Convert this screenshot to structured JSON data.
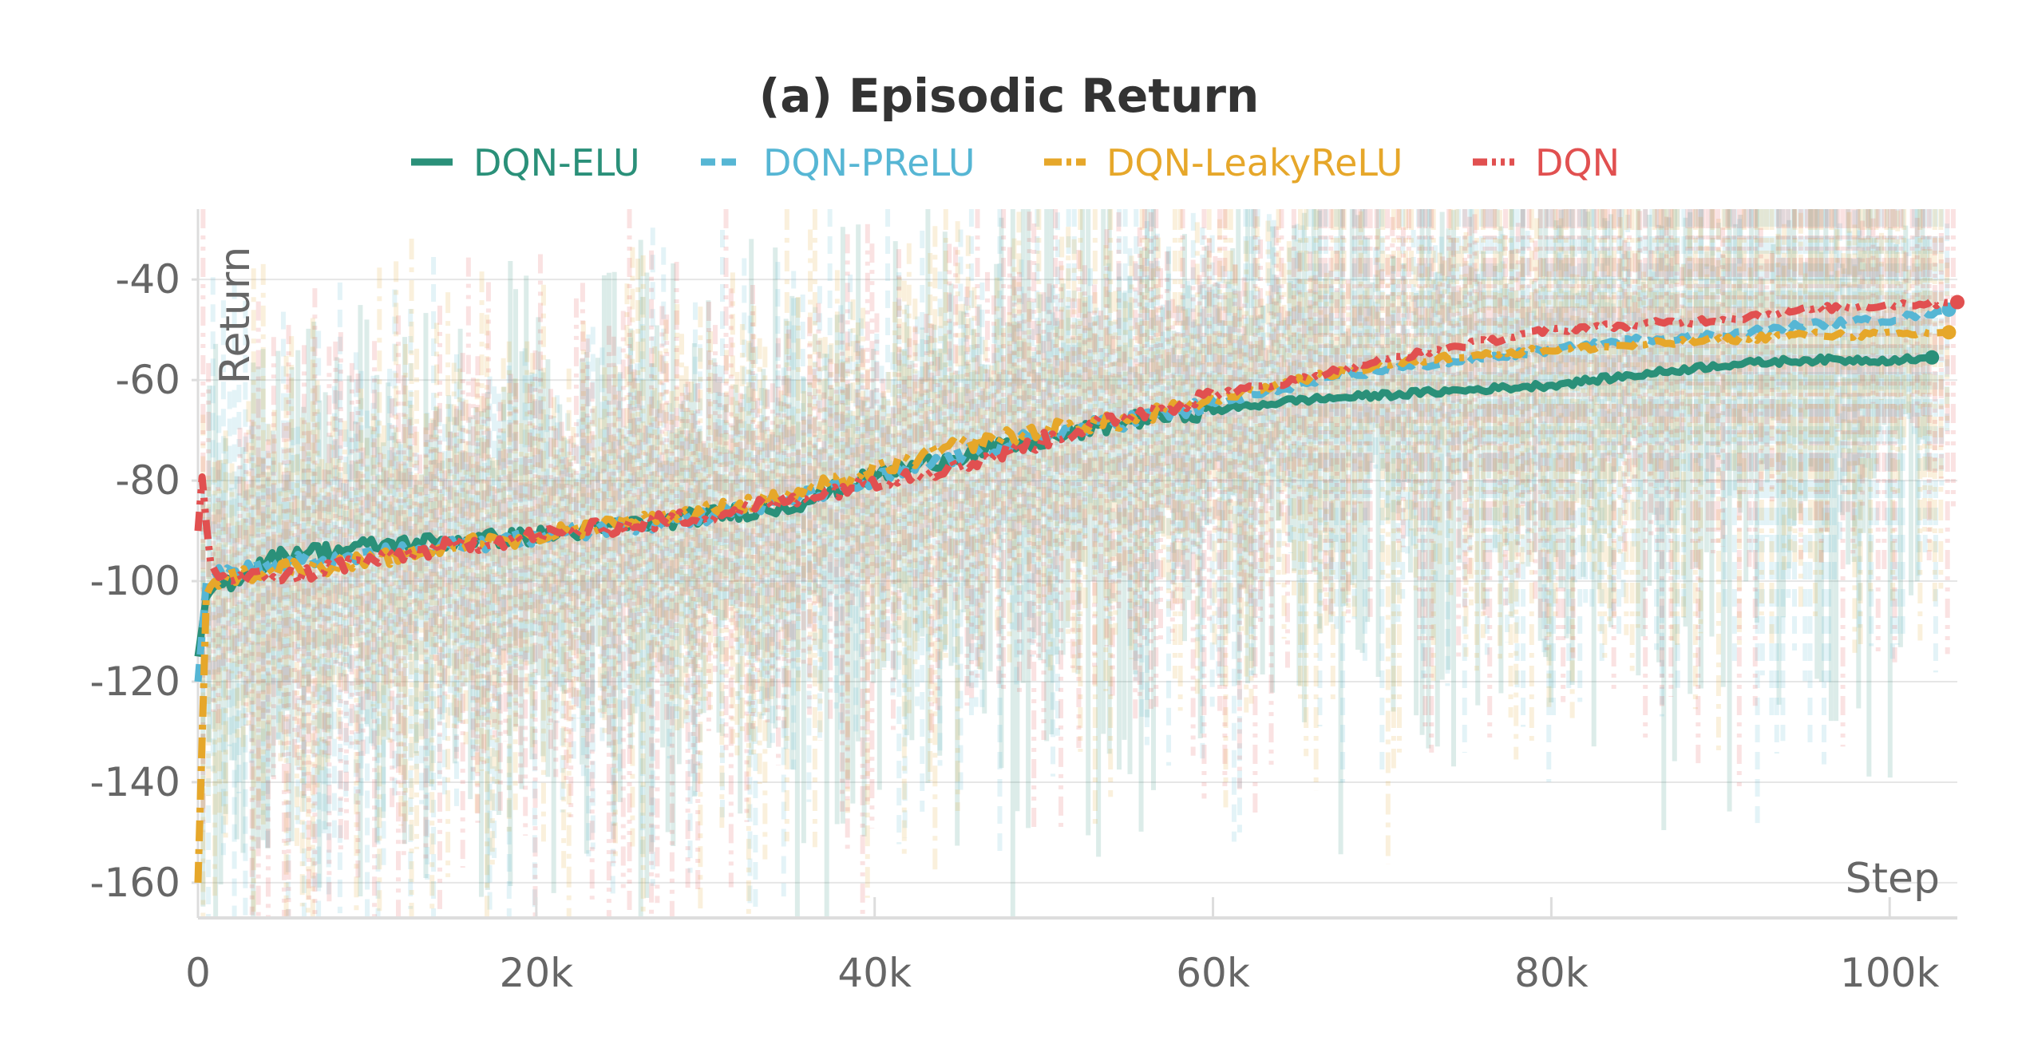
{
  "chart_data": {
    "type": "line",
    "title": "(a) Episodic Return",
    "xlabel": "Step",
    "ylabel": "Return",
    "xlim": [
      0,
      104000
    ],
    "ylim": [
      -167,
      -26
    ],
    "x_ticks": [
      0,
      20000,
      40000,
      60000,
      80000,
      100000
    ],
    "x_tick_labels": [
      "0",
      "20k",
      "40k",
      "60k",
      "80k",
      "100k"
    ],
    "y_ticks": [
      -160,
      -140,
      -120,
      -100,
      -80,
      -60,
      -40
    ],
    "y_tick_labels": [
      "-160",
      "-140",
      "-120",
      "-100",
      "-80",
      "-60",
      "-40"
    ],
    "grid": true,
    "legend_position": "top-center",
    "series": [
      {
        "name": "DQN-ELU",
        "color": "#2a9079",
        "dash": "solid",
        "x": [
          0,
          500,
          1000,
          2000,
          4000,
          6000,
          8000,
          10000,
          15000,
          20000,
          25000,
          30000,
          35000,
          40000,
          45000,
          50000,
          55000,
          60000,
          65000,
          70000,
          75000,
          80000,
          85000,
          90000,
          95000,
          100000,
          102500
        ],
        "y": [
          -115,
          -103,
          -101,
          -100,
          -96,
          -94,
          -94,
          -93,
          -92,
          -91,
          -89,
          -87,
          -85,
          -79,
          -75,
          -72,
          -68,
          -66,
          -64,
          -63,
          -62,
          -61,
          -59,
          -57,
          -56,
          -56,
          -55.5
        ]
      },
      {
        "name": "DQN-PReLU",
        "color": "#56b6d4",
        "dash": "dashed",
        "x": [
          0,
          500,
          1000,
          2000,
          4000,
          6000,
          8000,
          10000,
          15000,
          20000,
          25000,
          30000,
          35000,
          40000,
          45000,
          50000,
          55000,
          60000,
          65000,
          70000,
          75000,
          80000,
          85000,
          90000,
          95000,
          100000,
          103500
        ],
        "y": [
          -120,
          -100,
          -99,
          -98,
          -97,
          -96,
          -96,
          -95,
          -93,
          -91,
          -89,
          -87,
          -84,
          -80,
          -75,
          -71,
          -68,
          -65,
          -61,
          -58,
          -56,
          -54,
          -52,
          -51,
          -49,
          -48,
          -46
        ]
      },
      {
        "name": "DQN-LeakyReLU",
        "color": "#e6a72a",
        "dash": "dashdot",
        "x": [
          0,
          500,
          1000,
          2000,
          4000,
          6000,
          8000,
          10000,
          15000,
          20000,
          25000,
          30000,
          35000,
          40000,
          45000,
          50000,
          55000,
          60000,
          65000,
          70000,
          75000,
          80000,
          85000,
          90000,
          95000,
          100000,
          103500
        ],
        "y": [
          -160,
          -102,
          -100,
          -99,
          -98,
          -97,
          -97,
          -96,
          -93,
          -91,
          -88,
          -86,
          -83,
          -78,
          -73,
          -70,
          -68,
          -64,
          -60,
          -57,
          -55,
          -54,
          -53,
          -52,
          -51,
          -51,
          -50.5
        ]
      },
      {
        "name": "DQN",
        "color": "#e15050",
        "dash": "dashdotdot",
        "x": [
          0,
          300,
          600,
          1000,
          2000,
          4000,
          6000,
          8000,
          10000,
          15000,
          20000,
          25000,
          30000,
          35000,
          40000,
          45000,
          50000,
          55000,
          60000,
          65000,
          70000,
          75000,
          80000,
          85000,
          90000,
          95000,
          100000,
          104000
        ],
        "y": [
          -90,
          -77,
          -95,
          -98,
          -100,
          -99,
          -99,
          -97,
          -96,
          -93,
          -91,
          -89,
          -87,
          -84,
          -80,
          -77,
          -72,
          -67,
          -63,
          -60,
          -56,
          -53,
          -50,
          -49,
          -48,
          -46,
          -45,
          -44.5
        ]
      }
    ]
  }
}
